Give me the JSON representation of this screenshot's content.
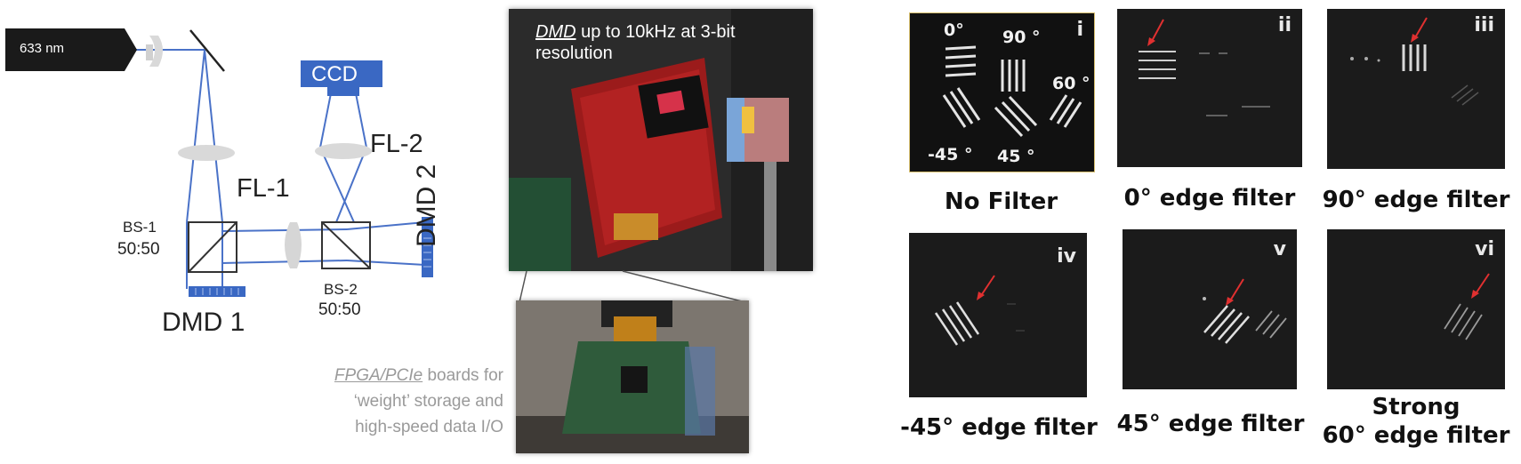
{
  "setup": {
    "laser_label": "633 nm",
    "ccd_label": "CCD",
    "fl1_label": "FL-1",
    "fl2_label": "FL-2",
    "bs1_name": "BS-1",
    "bs1_ratio": "50:50",
    "bs2_name": "BS-2",
    "bs2_ratio": "50:50",
    "dmd1_label": "DMD 1",
    "dmd2_label": "DMD 2",
    "beam_color": "#4a72c8",
    "component_color": "#3a68c3"
  },
  "photos": {
    "dmd_caption_emph": "DMD",
    "dmd_caption_rest1": " up to 10kHz at 3-bit",
    "dmd_caption_rest2": "resolution",
    "fpga_caption_emph": "FPGA/PCIe",
    "fpga_caption_rest1": " boards for",
    "fpga_caption_rest2": "‘weight’ storage and",
    "fpga_caption_rest3": "high-speed data I/O"
  },
  "filters": {
    "panels": [
      {
        "numeral": "i",
        "caption": "No Filter"
      },
      {
        "numeral": "ii",
        "caption": "0° edge filter"
      },
      {
        "numeral": "iii",
        "caption": "90° edge filter"
      },
      {
        "numeral": "iv",
        "caption": "-45° edge filter"
      },
      {
        "numeral": "v",
        "caption": "45° edge filter"
      },
      {
        "numeral": "vi",
        "caption_line1": "Strong",
        "caption_line2": "60° edge filter"
      }
    ],
    "angles": {
      "a0": "0°",
      "a90": "90 °",
      "a60": "60 °",
      "am45": "-45 °",
      "a45": "45 °"
    }
  }
}
